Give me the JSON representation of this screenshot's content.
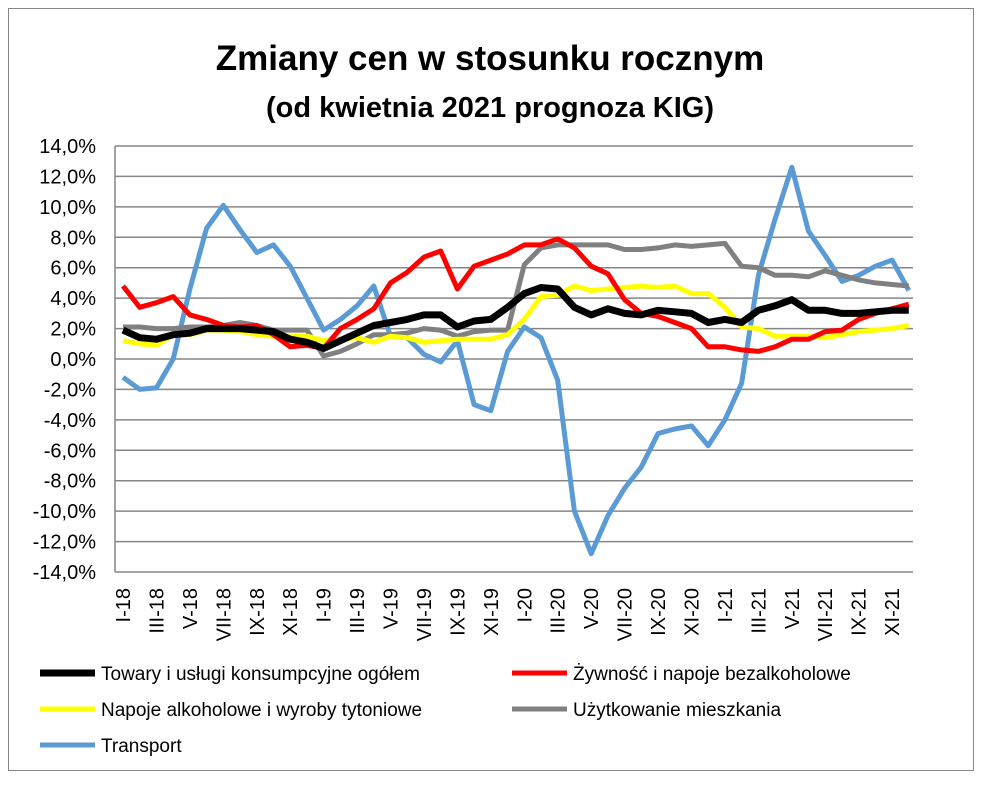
{
  "chart_data": {
    "type": "line",
    "title": "Zmiany cen w stosunku rocznym",
    "subtitle": "(od kwietnia 2021 prognoza KIG)",
    "xlabel": "",
    "ylabel": "",
    "ylim": [
      -14,
      14
    ],
    "yticks": [
      "14,0%",
      "12,0%",
      "10,0%",
      "8,0%",
      "6,0%",
      "4,0%",
      "2,0%",
      "0,0%",
      "-2,0%",
      "-4,0%",
      "-6,0%",
      "-8,0%",
      "-10,0%",
      "-12,0%",
      "-14,0%"
    ],
    "ytick_values": [
      14,
      12,
      10,
      8,
      6,
      4,
      2,
      0,
      -2,
      -4,
      -6,
      -8,
      -10,
      -12,
      -14
    ],
    "grid": true,
    "legend_position": "bottom",
    "x": [
      "I-18",
      "II-18",
      "III-18",
      "IV-18",
      "V-18",
      "VI-18",
      "VII-18",
      "VIII-18",
      "IX-18",
      "X-18",
      "XI-18",
      "XII-18",
      "I-19",
      "II-19",
      "III-19",
      "IV-19",
      "V-19",
      "VI-19",
      "VII-19",
      "VIII-19",
      "IX-19",
      "X-19",
      "XI-19",
      "XII-19",
      "I-20",
      "II-20",
      "III-20",
      "IV-20",
      "V-20",
      "VI-20",
      "VII-20",
      "VIII-20",
      "IX-20",
      "X-20",
      "XI-20",
      "XII-20",
      "I-21",
      "II-21",
      "III-21",
      "IV-21",
      "V-21",
      "VI-21",
      "VII-21",
      "VIII-21",
      "IX-21",
      "X-21",
      "XI-21",
      "XII-21"
    ],
    "xtick_labels": [
      "I-18",
      "III-18",
      "V-18",
      "VII-18",
      "IX-18",
      "XI-18",
      "I-19",
      "III-19",
      "V-19",
      "VII-19",
      "IX-19",
      "XI-19",
      "I-20",
      "III-20",
      "V-20",
      "VII-20",
      "IX-20",
      "XI-20",
      "I-21",
      "III-21",
      "V-21",
      "VII-21",
      "IX-21",
      "XI-21"
    ],
    "series": [
      {
        "name": "Towary i usługi konsumpcyjne ogółem",
        "color": "#000000",
        "values": [
          1.9,
          1.4,
          1.3,
          1.6,
          1.7,
          2.0,
          2.0,
          2.0,
          1.9,
          1.8,
          1.3,
          1.1,
          0.7,
          1.2,
          1.7,
          2.2,
          2.4,
          2.6,
          2.9,
          2.9,
          2.1,
          2.5,
          2.6,
          3.4,
          4.3,
          4.7,
          4.6,
          3.4,
          2.9,
          3.3,
          3.0,
          2.9,
          3.2,
          3.1,
          3.0,
          2.4,
          2.6,
          2.4,
          3.2,
          3.5,
          3.9,
          3.2,
          3.2,
          3.0,
          3.0,
          3.1,
          3.2,
          3.2
        ]
      },
      {
        "name": "Żywność i napoje bezalkoholowe",
        "color": "#ff0000",
        "values": [
          4.8,
          3.4,
          3.7,
          4.1,
          2.9,
          2.6,
          2.2,
          2.1,
          2.2,
          1.6,
          0.8,
          0.9,
          0.7,
          2.0,
          2.6,
          3.3,
          5.0,
          5.7,
          6.7,
          7.1,
          4.6,
          6.1,
          6.5,
          6.9,
          7.5,
          7.5,
          7.9,
          7.3,
          6.1,
          5.6,
          3.9,
          3.0,
          2.8,
          2.4,
          2.0,
          0.8,
          0.8,
          0.6,
          0.5,
          0.8,
          1.3,
          1.3,
          1.8,
          1.9,
          2.6,
          3.0,
          3.3,
          3.6
        ]
      },
      {
        "name": "Napoje alkoholowe i wyroby tytoniowe",
        "color": "#ffff00",
        "values": [
          1.2,
          1.0,
          0.9,
          1.6,
          1.6,
          1.9,
          1.9,
          1.8,
          1.6,
          1.5,
          1.5,
          1.5,
          1.2,
          1.3,
          1.4,
          1.1,
          1.5,
          1.4,
          1.1,
          1.2,
          1.3,
          1.3,
          1.3,
          1.6,
          2.6,
          4.1,
          4.2,
          4.8,
          4.5,
          4.6,
          4.7,
          4.8,
          4.7,
          4.8,
          4.3,
          4.3,
          3.4,
          2.1,
          2.0,
          1.5,
          1.5,
          1.5,
          1.4,
          1.6,
          1.8,
          1.9,
          2.0,
          2.2
        ]
      },
      {
        "name": "Użytkowanie mieszkania",
        "color": "#808080",
        "values": [
          2.1,
          2.1,
          2.0,
          2.0,
          2.1,
          2.1,
          2.2,
          2.4,
          2.2,
          1.9,
          1.9,
          1.9,
          0.2,
          0.5,
          1.0,
          1.6,
          1.6,
          1.7,
          2.0,
          1.9,
          1.5,
          1.8,
          1.9,
          1.9,
          6.2,
          7.3,
          7.5,
          7.5,
          7.5,
          7.5,
          7.2,
          7.2,
          7.3,
          7.5,
          7.4,
          7.5,
          7.6,
          6.1,
          6.0,
          5.5,
          5.5,
          5.4,
          5.8,
          5.5,
          5.2,
          5.0,
          4.9,
          4.8
        ]
      },
      {
        "name": "Transport",
        "color": "#5b9bd5",
        "values": [
          -1.2,
          -2.0,
          -1.9,
          0.0,
          4.6,
          8.6,
          10.1,
          8.5,
          7.0,
          7.5,
          6.1,
          4.0,
          1.9,
          2.6,
          3.5,
          4.8,
          1.5,
          1.4,
          0.3,
          -0.2,
          1.2,
          -3.0,
          -3.4,
          0.5,
          2.1,
          1.4,
          -1.4,
          -10.0,
          -12.8,
          -10.3,
          -8.5,
          -7.1,
          -4.9,
          -4.6,
          -4.4,
          -5.7,
          -4.0,
          -1.6,
          5.5,
          9.2,
          12.6,
          8.4,
          6.8,
          5.1,
          5.5,
          6.1,
          6.5,
          4.5
        ]
      }
    ]
  }
}
